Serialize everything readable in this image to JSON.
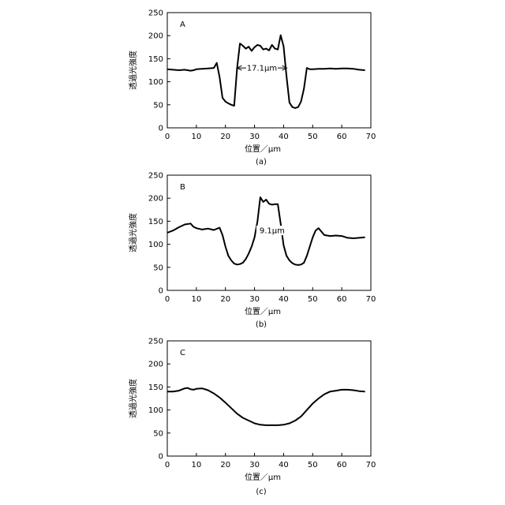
{
  "chart_data": [
    {
      "type": "line",
      "panel_label": "A",
      "caption": "(a)",
      "xlabel": "位置／μm",
      "ylabel": "透過光強度",
      "xlim": [
        0,
        70
      ],
      "ylim": [
        0,
        250
      ],
      "xticks": [
        0,
        10,
        20,
        30,
        40,
        50,
        60,
        70
      ],
      "yticks": [
        0,
        50,
        100,
        150,
        200,
        250
      ],
      "series": [
        {
          "x": [
            0,
            2,
            4,
            6,
            8,
            9,
            10,
            12,
            14,
            16,
            17,
            18,
            19,
            20,
            21,
            22,
            23,
            24,
            25,
            26,
            27,
            28,
            29,
            30,
            31,
            32,
            33,
            34,
            35,
            36,
            37,
            38,
            39,
            40,
            41,
            42,
            43,
            44,
            45,
            46,
            47,
            48,
            49,
            50,
            52,
            54,
            56,
            58,
            60,
            62,
            64,
            66,
            68
          ],
          "y": [
            127,
            126,
            125,
            126,
            124,
            125,
            127,
            128,
            129,
            130,
            141,
            110,
            65,
            57,
            53,
            50,
            48,
            130,
            183,
            178,
            172,
            176,
            167,
            175,
            180,
            178,
            170,
            172,
            168,
            180,
            172,
            170,
            201,
            177,
            112,
            55,
            45,
            43,
            45,
            57,
            85,
            130,
            127,
            127,
            128,
            128,
            129,
            128,
            129,
            129,
            128,
            126,
            125
          ]
        }
      ],
      "annotation": {
        "text": "17.1μm",
        "from": 24,
        "to": 41.1,
        "y": 130
      }
    },
    {
      "type": "line",
      "panel_label": "B",
      "caption": "(b)",
      "xlabel": "位置／μm",
      "ylabel": "透過光強度",
      "xlim": [
        0,
        70
      ],
      "ylim": [
        0,
        250
      ],
      "xticks": [
        0,
        10,
        20,
        30,
        40,
        50,
        60,
        70
      ],
      "yticks": [
        0,
        50,
        100,
        150,
        200,
        250
      ],
      "series": [
        {
          "x": [
            0,
            2,
            4,
            6,
            8,
            9,
            10,
            12,
            14,
            16,
            18,
            19,
            20,
            21,
            22,
            23,
            24,
            25,
            26,
            27,
            28,
            29,
            30,
            31,
            32,
            33,
            34,
            35,
            36,
            37,
            38,
            39,
            40,
            41,
            42,
            43,
            44,
            45,
            46,
            47,
            48,
            49,
            50,
            51,
            52,
            54,
            56,
            58,
            60,
            62,
            64,
            66,
            68
          ],
          "y": [
            125,
            130,
            137,
            143,
            145,
            138,
            135,
            132,
            134,
            131,
            136,
            120,
            95,
            75,
            65,
            58,
            56,
            57,
            60,
            68,
            80,
            95,
            115,
            150,
            202,
            192,
            197,
            188,
            186,
            187,
            187,
            145,
            98,
            75,
            65,
            59,
            56,
            55,
            56,
            60,
            75,
            95,
            115,
            130,
            135,
            120,
            118,
            119,
            118,
            114,
            113,
            114,
            115
          ]
        }
      ],
      "annotation": {
        "text": "9.1μm",
        "from": 31.5,
        "to": 40.6,
        "y": 130
      }
    },
    {
      "type": "line",
      "panel_label": "C",
      "caption": "(c)",
      "xlabel": "位置／μm",
      "ylabel": "透過光強度",
      "xlim": [
        0,
        70
      ],
      "ylim": [
        0,
        250
      ],
      "xticks": [
        0,
        10,
        20,
        30,
        40,
        50,
        60,
        70
      ],
      "yticks": [
        0,
        50,
        100,
        150,
        200,
        250
      ],
      "series": [
        {
          "x": [
            0,
            2,
            4,
            6,
            7,
            8,
            9,
            10,
            12,
            14,
            16,
            18,
            20,
            22,
            24,
            26,
            28,
            30,
            32,
            34,
            36,
            38,
            40,
            42,
            44,
            46,
            48,
            50,
            52,
            54,
            56,
            58,
            60,
            62,
            64,
            66,
            68
          ],
          "y": [
            140,
            140,
            142,
            147,
            148,
            145,
            144,
            146,
            147,
            143,
            136,
            127,
            116,
            104,
            92,
            83,
            77,
            71,
            68,
            67,
            67,
            67,
            68,
            71,
            77,
            86,
            100,
            114,
            125,
            134,
            140,
            142,
            144,
            144,
            143,
            141,
            140
          ]
        }
      ]
    }
  ]
}
